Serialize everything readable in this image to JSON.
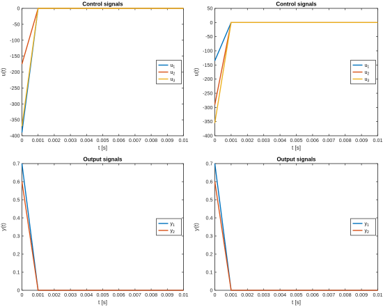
{
  "colors": {
    "c1": "#0072BD",
    "c2": "#D95319",
    "c3": "#EDB120"
  },
  "chart_data": [
    {
      "type": "line",
      "title": "Control signals",
      "xlabel": "t [s]",
      "ylabel": "u(t)",
      "xlim": [
        0,
        0.01
      ],
      "ylim": [
        -400,
        0
      ],
      "xticks": [
        "0",
        "0.001",
        "0.002",
        "0.003",
        "0.004",
        "0.005",
        "0.006",
        "0.007",
        "0.008",
        "0.009",
        "0.01"
      ],
      "yticks": [
        "-400",
        "-350",
        "-300",
        "-250",
        "-200",
        "-150",
        "-100",
        "-50",
        "0"
      ],
      "legend_location": "right",
      "series": [
        {
          "name": "u",
          "subscript": "1",
          "color": "#0072BD",
          "x": [
            0,
            0.001,
            0.01
          ],
          "y": [
            -390,
            0,
            0
          ]
        },
        {
          "name": "u",
          "subscript": "2",
          "color": "#D95319",
          "x": [
            0,
            0.001,
            0.01
          ],
          "y": [
            -175,
            0,
            0
          ]
        },
        {
          "name": "u",
          "subscript": "3",
          "color": "#EDB120",
          "x": [
            0,
            0.001,
            0.01
          ],
          "y": [
            -370,
            0,
            0
          ]
        }
      ]
    },
    {
      "type": "line",
      "title": "Control signals",
      "xlabel": "t [s]",
      "ylabel": "u(t)",
      "xlim": [
        0,
        0.01
      ],
      "ylim": [
        -400,
        50
      ],
      "xticks": [
        "0",
        "0.001",
        "0.002",
        "0.003",
        "0.004",
        "0.005",
        "0.006",
        "0.007",
        "0.008",
        "0.009",
        "0.01"
      ],
      "yticks": [
        "-400",
        "-350",
        "-300",
        "-250",
        "-200",
        "-150",
        "-100",
        "-50",
        "0",
        "50"
      ],
      "legend_location": "right",
      "series": [
        {
          "name": "u",
          "subscript": "1",
          "color": "#0072BD",
          "x": [
            0,
            0.001,
            0.01
          ],
          "y": [
            -135,
            0,
            0
          ]
        },
        {
          "name": "u",
          "subscript": "2",
          "color": "#D95319",
          "x": [
            0,
            0.001,
            0.01
          ],
          "y": [
            -290,
            0,
            0
          ]
        },
        {
          "name": "u",
          "subscript": "3",
          "color": "#EDB120",
          "x": [
            0,
            0.001,
            0.01
          ],
          "y": [
            -355,
            0,
            0
          ]
        }
      ]
    },
    {
      "type": "line",
      "title": "Output signals",
      "xlabel": "t [s]",
      "ylabel": "y(t)",
      "xlim": [
        0,
        0.01
      ],
      "ylim": [
        0,
        0.7
      ],
      "xticks": [
        "0",
        "0.001",
        "0.002",
        "0.003",
        "0.004",
        "0.005",
        "0.006",
        "0.007",
        "0.008",
        "0.009",
        "0.01"
      ],
      "yticks": [
        "0",
        "0.1",
        "0.2",
        "0.3",
        "0.4",
        "0.5",
        "0.6",
        "0.7"
      ],
      "legend_location": "right",
      "series": [
        {
          "name": "y",
          "subscript": "1",
          "color": "#0072BD",
          "x": [
            0,
            0.001,
            0.01
          ],
          "y": [
            0.7,
            0,
            0
          ]
        },
        {
          "name": "y",
          "subscript": "2",
          "color": "#D95319",
          "x": [
            0,
            0.001,
            0.01
          ],
          "y": [
            0.6,
            0,
            0
          ]
        }
      ]
    },
    {
      "type": "line",
      "title": "Output signals",
      "xlabel": "t [s]",
      "ylabel": "y(t)",
      "xlim": [
        0,
        0.01
      ],
      "ylim": [
        0,
        0.7
      ],
      "xticks": [
        "0",
        "0.001",
        "0.002",
        "0.003",
        "0.004",
        "0.005",
        "0.006",
        "0.007",
        "0.008",
        "0.009",
        "0.01"
      ],
      "yticks": [
        "0",
        "0.1",
        "0.2",
        "0.3",
        "0.4",
        "0.5",
        "0.6",
        "0.7"
      ],
      "legend_location": "right",
      "series": [
        {
          "name": "y",
          "subscript": "1",
          "color": "#0072BD",
          "x": [
            0,
            0.001,
            0.01
          ],
          "y": [
            0.7,
            0,
            0
          ]
        },
        {
          "name": "y",
          "subscript": "2",
          "color": "#D95319",
          "x": [
            0,
            0.001,
            0.01
          ],
          "y": [
            0.6,
            0,
            0
          ]
        }
      ]
    }
  ]
}
